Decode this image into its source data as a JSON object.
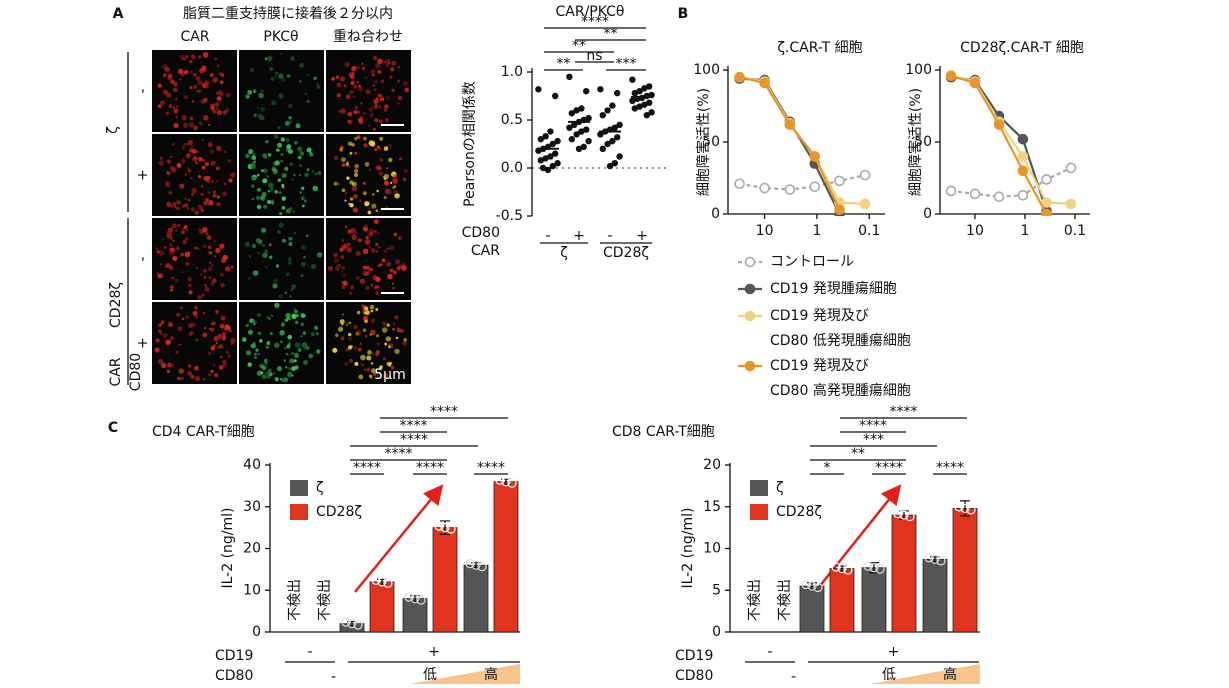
{
  "figure": {
    "panels": [
      "A",
      "B",
      "C"
    ],
    "A": {
      "title": "脂質二重支持膜に接着後２分以内",
      "columns": [
        "CAR",
        "PKCθ",
        "重ね合わせ"
      ],
      "rows": [
        "-",
        "+",
        "-",
        "+"
      ],
      "groups": [
        "ζ",
        "CD28ζ"
      ],
      "car_label": "CAR",
      "cd80_label": "CD80",
      "scale": "5μm"
    }
  },
  "chart_data": [
    {
      "type": "strip",
      "title": "CAR/PKCθ",
      "y_label": "Pearsonの相関係数",
      "color": "#111111",
      "ylim": [
        -0.5,
        1
      ],
      "yticks": [
        {
          "value": 1,
          "label": "1.0"
        },
        0.5,
        {
          "value": 0,
          "label": "0.0"
        },
        -0.5
      ],
      "zero_line": true,
      "rows": [
        {
          "name": "CD80",
          "labels": [
            "-",
            "+",
            "-",
            "+"
          ]
        },
        {
          "name": "CAR",
          "labels": [
            "ζ",
            "CD28ζ"
          ]
        }
      ],
      "series": [
        {
          "values": [
            0.82,
            0.75,
            0.38,
            0.33,
            0.3,
            0.28,
            0.25,
            0.22,
            0.2,
            0.18,
            0.15,
            0.12,
            0.1,
            0.08,
            0.05,
            0.02,
            -0.02,
            0
          ],
          "median": 0.2
        },
        {
          "values": [
            0.95,
            0.8,
            0.62,
            0.6,
            0.57,
            0.52,
            0.5,
            0.48,
            0.45,
            0.42,
            0.4,
            0.38,
            0.35,
            0.3,
            0.28,
            0.22,
            0.2
          ],
          "median": 0.48
        },
        {
          "values": [
            0.82,
            0.78,
            0.65,
            0.6,
            0.55,
            0.45,
            0.42,
            0.4,
            0.38,
            0.35,
            0.32,
            0.28,
            0.25,
            0.2,
            0.12,
            0.05,
            0.02
          ],
          "median": 0.38
        },
        {
          "values": [
            0.92,
            0.85,
            0.83,
            0.8,
            0.78,
            0.76,
            0.75,
            0.73,
            0.72,
            0.7,
            0.68,
            0.66,
            0.64,
            0.62,
            0.58,
            0.55
          ],
          "median": 0.74
        }
      ],
      "comparisons": [
        "****",
        "**",
        "**",
        "ns",
        "**",
        "***"
      ]
    },
    {
      "type": "line",
      "title": "ζ.CAR-T 細胞",
      "y_label": "細胞障害活性(%)",
      "x": [
        30,
        10,
        3.3,
        1.1,
        0.37,
        0.12
      ],
      "xlim": [
        50,
        0.05
      ],
      "xscale": "log",
      "xticks": [
        10,
        1,
        0.1
      ],
      "ylim": [
        0,
        100
      ],
      "yticks": [
        0,
        50,
        100
      ],
      "series": [
        {
          "name": "コントロール",
          "color": "#aaaaaa",
          "dashed": true,
          "open": true,
          "values": [
            21,
            18,
            17,
            19,
            23,
            27
          ]
        },
        {
          "name": "CD19 発現腫瘍細胞",
          "color": "#555555",
          "values": [
            94,
            93,
            64,
            35,
            0,
            null
          ]
        },
        {
          "name": "CD19 発現及び\nCD80 低発現腫瘍細胞",
          "color": "#f2d27e",
          "values": [
            95,
            92,
            63,
            40,
            8,
            7
          ]
        },
        {
          "name": "CD19 発現及び\nCD80 高発現腫瘍細胞",
          "color": "#e8962a",
          "values": [
            95,
            91,
            62,
            40,
            3,
            null
          ]
        }
      ]
    },
    {
      "type": "line",
      "title": "CD28ζ.CAR-T 細胞",
      "y_label": "細胞障害活性(%)",
      "x": [
        30,
        10,
        3.3,
        1.1,
        0.37,
        0.12
      ],
      "xlim": [
        50,
        0.05
      ],
      "xscale": "log",
      "xticks": [
        10,
        1,
        0.1
      ],
      "ylim": [
        0,
        100
      ],
      "yticks": [
        0,
        50,
        100
      ],
      "series": [
        {
          "color": "#aaaaaa",
          "dashed": true,
          "open": true,
          "values": [
            16,
            14,
            12,
            13,
            24,
            32
          ]
        },
        {
          "color": "#555555",
          "values": [
            95,
            93,
            68,
            52,
            2,
            null
          ]
        },
        {
          "color": "#f2d27e",
          "values": [
            96,
            92,
            64,
            40,
            8,
            7
          ]
        },
        {
          "color": "#e8962a",
          "values": [
            96,
            91,
            62,
            30,
            0,
            null
          ]
        }
      ]
    },
    {
      "type": "bar",
      "title": "CD4 CAR-T細胞",
      "y_label": "IL-2 (ng/ml)",
      "ylim": [
        0,
        40
      ],
      "yticks": [
        0,
        10,
        20,
        30,
        40
      ],
      "series": [
        {
          "name": "ζ",
          "color": "#555555",
          "values": [
            null,
            2,
            8,
            16
          ],
          "errors": [
            null,
            0.5,
            0.7,
            0.6
          ],
          "value_labels": [
            "不検出",
            null,
            null,
            null
          ]
        },
        {
          "name": "CD28ζ",
          "color": "#e0341f",
          "values": [
            null,
            12,
            25,
            36
          ],
          "errors": [
            null,
            0.6,
            1.6,
            0.6
          ],
          "value_labels": [
            "不検出",
            null,
            null,
            null
          ]
        }
      ],
      "rows": [
        {
          "name": "CD19",
          "labels": [
            "-",
            "+"
          ]
        },
        {
          "name": "CD80",
          "labels": [
            "-",
            "低",
            "高"
          ]
        }
      ],
      "comparisons": [
        "****",
        "****",
        "****",
        "****",
        "****",
        "****",
        "****"
      ]
    },
    {
      "type": "bar",
      "title": "CD8 CAR-T細胞",
      "y_label": "IL-2 (ng/ml)",
      "ylim": [
        0,
        20
      ],
      "yticks": [
        0,
        5,
        10,
        15,
        20
      ],
      "series": [
        {
          "name": "ζ",
          "color": "#555555",
          "values": [
            null,
            5.5,
            7.7,
            8.7
          ],
          "errors": [
            null,
            0.4,
            0.6,
            0.3
          ],
          "value_labels": [
            "不検出",
            null,
            null,
            null
          ]
        },
        {
          "name": "CD28ζ",
          "color": "#e0341f",
          "values": [
            null,
            7.6,
            14,
            14.8
          ],
          "errors": [
            null,
            0.3,
            0.5,
            0.9
          ],
          "value_labels": [
            "不検出",
            null,
            null,
            null
          ]
        }
      ],
      "rows": [
        {
          "name": "CD19",
          "labels": [
            "-",
            "+"
          ]
        },
        {
          "name": "CD80",
          "labels": [
            "-",
            "低",
            "高"
          ]
        }
      ],
      "comparisons": [
        "*",
        "**",
        "***",
        "****",
        "****",
        "****",
        "****"
      ]
    }
  ]
}
